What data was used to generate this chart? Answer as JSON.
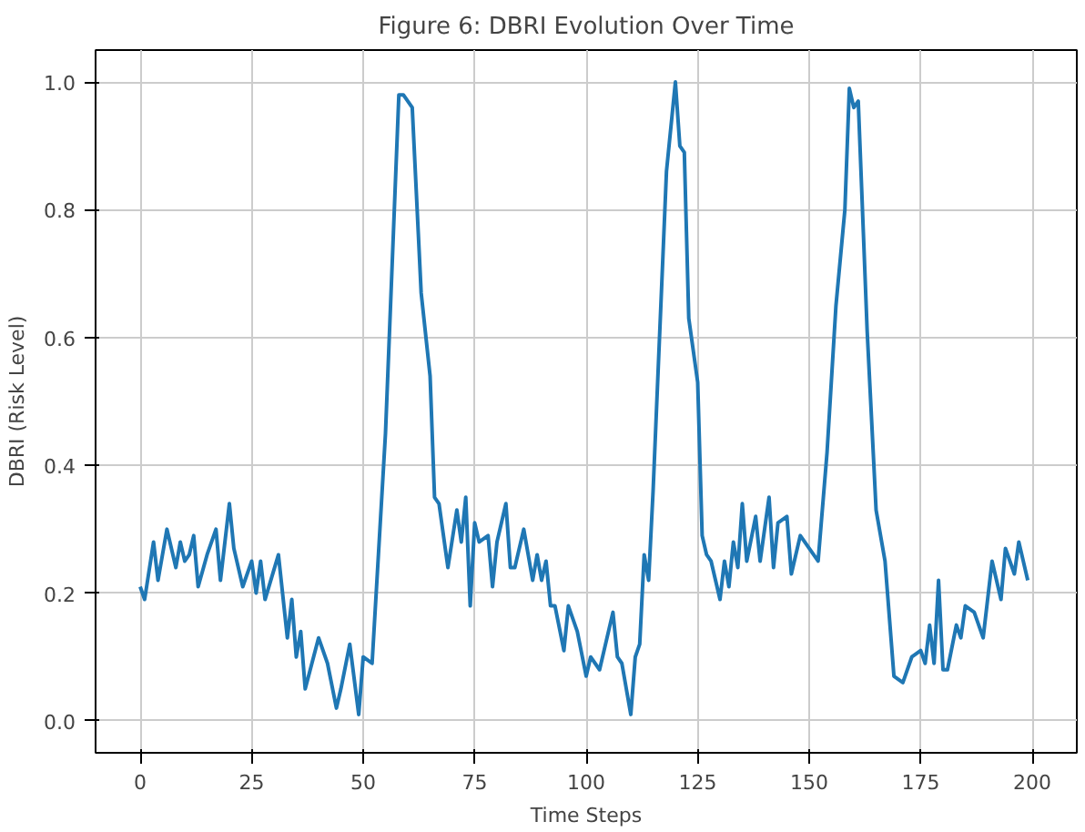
{
  "chart_data": {
    "type": "line",
    "title": "Figure 6: DBRI Evolution Over Time",
    "xlabel": "Time Steps",
    "ylabel": "DBRI (Risk Level)",
    "xlim": [
      -10,
      210
    ],
    "ylim": [
      -0.05,
      1.05
    ],
    "xticks": [
      0,
      25,
      50,
      75,
      100,
      125,
      150,
      175,
      200
    ],
    "yticks": [
      {
        "value": 0,
        "label": "0.0"
      },
      {
        "value": 0.2,
        "label": "0.2"
      },
      {
        "value": 0.4,
        "label": "0.4"
      },
      {
        "value": 0.6,
        "label": "0.6"
      },
      {
        "value": 0.8,
        "label": "0.8"
      },
      {
        "value": 1,
        "label": "1.0"
      }
    ],
    "grid": true,
    "series": [
      {
        "color": "#1f77b4",
        "x": [
          0,
          1,
          3,
          4,
          6,
          8,
          9,
          10,
          11,
          12,
          13,
          15,
          17,
          18,
          20,
          21,
          23,
          25,
          26,
          27,
          28,
          31,
          33,
          34,
          35,
          36,
          37,
          40,
          42,
          44,
          45,
          47,
          49,
          50,
          52,
          55,
          58,
          59,
          61,
          63,
          65,
          66,
          67,
          69,
          71,
          72,
          73,
          74,
          75,
          76,
          78,
          79,
          80,
          82,
          83,
          84,
          86,
          88,
          89,
          90,
          91,
          92,
          93,
          95,
          96,
          98,
          100,
          101,
          103,
          106,
          107,
          108,
          110,
          111,
          112,
          113,
          114,
          115,
          118,
          120,
          121,
          122,
          123,
          125,
          126,
          127,
          128,
          130,
          131,
          132,
          133,
          134,
          135,
          136,
          138,
          139,
          141,
          142,
          143,
          145,
          146,
          148,
          150,
          152,
          154,
          156,
          158,
          159,
          160,
          161,
          163,
          165,
          167,
          169,
          171,
          173,
          175,
          176,
          177,
          178,
          179,
          180,
          181,
          183,
          184,
          185,
          187,
          189,
          191,
          193,
          194,
          196,
          197,
          199
        ],
        "values": [
          0.21,
          0.19,
          0.28,
          0.22,
          0.3,
          0.24,
          0.28,
          0.25,
          0.26,
          0.29,
          0.21,
          0.26,
          0.3,
          0.22,
          0.34,
          0.27,
          0.21,
          0.25,
          0.2,
          0.25,
          0.19,
          0.26,
          0.13,
          0.19,
          0.1,
          0.14,
          0.05,
          0.13,
          0.09,
          0.02,
          0.05,
          0.12,
          0.01,
          0.1,
          0.09,
          0.45,
          0.98,
          0.98,
          0.96,
          0.67,
          0.54,
          0.35,
          0.34,
          0.24,
          0.33,
          0.28,
          0.35,
          0.18,
          0.31,
          0.28,
          0.29,
          0.21,
          0.28,
          0.34,
          0.24,
          0.24,
          0.3,
          0.22,
          0.26,
          0.22,
          0.25,
          0.18,
          0.18,
          0.11,
          0.18,
          0.14,
          0.07,
          0.1,
          0.08,
          0.17,
          0.1,
          0.09,
          0.01,
          0.1,
          0.12,
          0.26,
          0.22,
          0.36,
          0.86,
          1.0,
          0.9,
          0.89,
          0.63,
          0.53,
          0.29,
          0.26,
          0.25,
          0.19,
          0.25,
          0.21,
          0.28,
          0.24,
          0.34,
          0.25,
          0.32,
          0.25,
          0.35,
          0.24,
          0.31,
          0.32,
          0.23,
          0.29,
          0.27,
          0.25,
          0.42,
          0.65,
          0.8,
          0.99,
          0.96,
          0.97,
          0.61,
          0.33,
          0.25,
          0.07,
          0.06,
          0.1,
          0.11,
          0.09,
          0.15,
          0.09,
          0.22,
          0.08,
          0.08,
          0.15,
          0.13,
          0.18,
          0.17,
          0.13,
          0.25,
          0.19,
          0.27,
          0.23,
          0.28,
          0.22
        ]
      }
    ]
  }
}
